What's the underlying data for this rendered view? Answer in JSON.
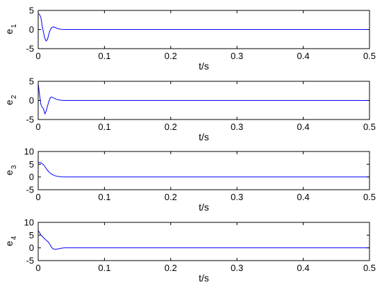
{
  "chart_data": [
    {
      "type": "line",
      "ylabel": "e",
      "ylabel_sub": "1",
      "xlabel": "t/s",
      "xlim": [
        0,
        0.5
      ],
      "ylim": [
        -5,
        5
      ],
      "xticks": [
        "0",
        "0.1",
        "0.2",
        "0.3",
        "0.4",
        "0.5"
      ],
      "yticks": [
        "-5",
        "0",
        "5"
      ],
      "color": "#0000ff",
      "series": [
        {
          "x": [
            0,
            0.002,
            0.004,
            0.006,
            0.008,
            0.01,
            0.012,
            0.014,
            0.016,
            0.018,
            0.02,
            0.023,
            0.026,
            0.03,
            0.035,
            0.04,
            0.05,
            0.06,
            0.1,
            0.2,
            0.3,
            0.4,
            0.5
          ],
          "y": [
            4.2,
            3.9,
            3.2,
            1.0,
            -0.8,
            -2.3,
            -3.0,
            -2.6,
            -1.2,
            -0.2,
            0.5,
            0.7,
            0.5,
            0.2,
            0.05,
            0.0,
            0.0,
            0.0,
            0.0,
            0.0,
            0.0,
            0.0,
            0.0
          ]
        }
      ]
    },
    {
      "type": "line",
      "ylabel": "e",
      "ylabel_sub": "2",
      "xlabel": "t/s",
      "xlim": [
        0,
        0.5
      ],
      "ylim": [
        -5,
        5
      ],
      "xticks": [
        "0",
        "0.1",
        "0.2",
        "0.3",
        "0.4",
        "0.5"
      ],
      "yticks": [
        "-5",
        "0",
        "5"
      ],
      "color": "#0000ff",
      "series": [
        {
          "x": [
            0,
            0.001,
            0.002,
            0.004,
            0.006,
            0.008,
            0.01,
            0.012,
            0.014,
            0.016,
            0.018,
            0.02,
            0.023,
            0.026,
            0.03,
            0.035,
            0.04,
            0.05,
            0.06,
            0.1,
            0.2,
            0.3,
            0.4,
            0.5
          ],
          "y": [
            4.5,
            3.0,
            1.5,
            -1.0,
            -1.8,
            -2.2,
            -3.5,
            -2.8,
            -1.5,
            -0.3,
            0.6,
            0.9,
            0.7,
            0.4,
            0.15,
            0.05,
            0.0,
            0.0,
            0.0,
            0.0,
            0.0,
            0.0,
            0.0,
            0.0
          ]
        }
      ]
    },
    {
      "type": "line",
      "ylabel": "e",
      "ylabel_sub": "3",
      "xlabel": "t/s",
      "xlim": [
        0,
        0.5
      ],
      "ylim": [
        -5,
        10
      ],
      "xticks": [
        "0",
        "0.1",
        "0.2",
        "0.3",
        "0.4",
        "0.5"
      ],
      "yticks": [
        "-5",
        "0",
        "5",
        "10"
      ],
      "color": "#0000ff",
      "series": [
        {
          "x": [
            0,
            0.002,
            0.004,
            0.006,
            0.008,
            0.01,
            0.013,
            0.016,
            0.02,
            0.025,
            0.03,
            0.035,
            0.04,
            0.05,
            0.06,
            0.1,
            0.2,
            0.3,
            0.4,
            0.5
          ],
          "y": [
            5.6,
            5.7,
            5.6,
            5.2,
            4.8,
            4.1,
            3.0,
            2.0,
            1.1,
            0.5,
            0.2,
            0.05,
            0.0,
            0.0,
            0.0,
            0.0,
            0.0,
            0.0,
            0.0,
            0.0
          ]
        }
      ]
    },
    {
      "type": "line",
      "ylabel": "e",
      "ylabel_sub": "4",
      "xlabel": "t/s",
      "xlim": [
        0,
        0.5
      ],
      "ylim": [
        -5,
        10
      ],
      "xticks": [
        "0",
        "0.1",
        "0.2",
        "0.3",
        "0.4",
        "0.5"
      ],
      "yticks": [
        "-5",
        "0",
        "5",
        "10"
      ],
      "color": "#0000ff",
      "series": [
        {
          "x": [
            0,
            0.002,
            0.004,
            0.006,
            0.008,
            0.01,
            0.012,
            0.014,
            0.016,
            0.018,
            0.02,
            0.022,
            0.025,
            0.028,
            0.032,
            0.036,
            0.04,
            0.05,
            0.06,
            0.1,
            0.2,
            0.3,
            0.4,
            0.5
          ],
          "y": [
            6.8,
            6.0,
            5.0,
            4.6,
            4.0,
            3.5,
            3.0,
            2.6,
            2.0,
            1.2,
            0.3,
            -0.3,
            -0.6,
            -0.5,
            -0.3,
            -0.1,
            0.0,
            0.0,
            0.0,
            0.0,
            0.0,
            0.0,
            0.0,
            0.0
          ]
        }
      ]
    }
  ]
}
